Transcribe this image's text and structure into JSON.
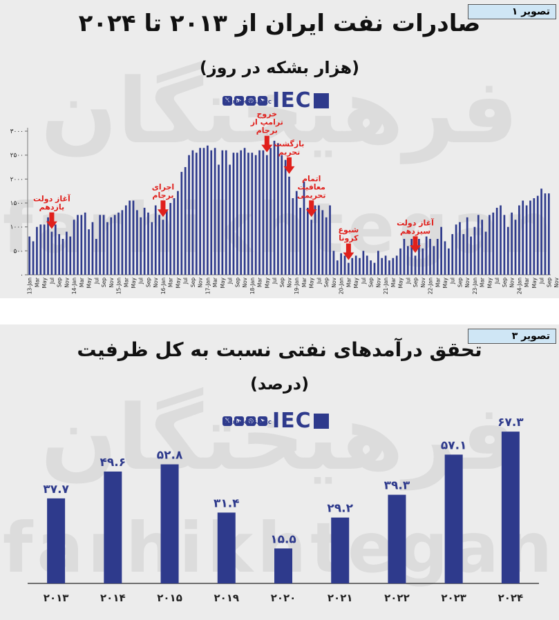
{
  "chart_data": [
    {
      "type": "bar",
      "tag": "تصویر ۱",
      "title": "صادرات نفت ایران از ۲۰۱۳ تا ۲۰۲۴",
      "subtitle": "(هزار بشکه در روز)",
      "ylim": [
        0,
        3000
      ],
      "yticks": [
        "۰",
        "۵۰۰",
        "۱۰۰۰",
        "۱۵۰۰",
        "۲۰۰۰",
        "۲۵۰۰",
        "۳۰۰۰"
      ],
      "x_tick_labels": [
        "13-Jan",
        "Mar",
        "May",
        "Jul",
        "Sep",
        "Nov",
        "14-Jan",
        "Mar",
        "May",
        "Jul",
        "Sep",
        "Nov",
        "15-Jan",
        "Mar",
        "May",
        "Jul",
        "Sep",
        "Nov",
        "16-Jan",
        "Mar",
        "May",
        "Jul",
        "Sep",
        "Nov",
        "17-Jan",
        "Mar",
        "May",
        "Jul",
        "Sep",
        "Nov",
        "18-Jan",
        "Mar",
        "May",
        "Jul",
        "Sep",
        "Nov",
        "19-Jan",
        "Mar",
        "May",
        "Jul",
        "Sep",
        "Nov",
        "20-Jan",
        "Mar",
        "May",
        "Jul",
        "Sep",
        "Nov",
        "21-Jan",
        "Mar",
        "May",
        "Jul",
        "Sep",
        "Nov",
        "22-Jan",
        "Mar",
        "May",
        "Jul",
        "Sep",
        "Nov",
        "23-Jan",
        "Mar",
        "May",
        "Jul",
        "Sep",
        "Nov",
        "24-Jan",
        "Mar",
        "May",
        "Jul",
        "Sep",
        "Nov"
      ],
      "values": [
        800,
        700,
        1000,
        1050,
        1050,
        1200,
        900,
        1050,
        850,
        750,
        900,
        800,
        1150,
        1250,
        1250,
        1300,
        950,
        1100,
        750,
        1250,
        1250,
        1100,
        1200,
        1250,
        1300,
        1350,
        1450,
        1550,
        1550,
        1350,
        1200,
        1400,
        1300,
        1100,
        1450,
        1250,
        1150,
        1350,
        1500,
        1600,
        1750,
        2150,
        2250,
        2500,
        2600,
        2550,
        2650,
        2650,
        2700,
        2600,
        2650,
        2300,
        2600,
        2600,
        2300,
        2550,
        2550,
        2600,
        2650,
        2550,
        2550,
        2500,
        2600,
        2600,
        2500,
        2650,
        2800,
        2750,
        2500,
        2400,
        2050,
        1600,
        1750,
        1400,
        1950,
        1400,
        1150,
        1450,
        1450,
        1350,
        1200,
        1450,
        500,
        300,
        450,
        400,
        250,
        350,
        400,
        350,
        500,
        400,
        300,
        250,
        500,
        350,
        400,
        300,
        350,
        400,
        550,
        750,
        600,
        750,
        400,
        750,
        550,
        800,
        750,
        600,
        750,
        1000,
        700,
        550,
        850,
        1050,
        1100,
        850,
        1200,
        800,
        1000,
        1250,
        1150,
        900,
        1250,
        1300,
        1400,
        1450,
        1250,
        1000,
        1300,
        1150,
        1450,
        1550,
        1450,
        1550,
        1600,
        1650,
        1800,
        1700,
        1700
      ]
    },
    {
      "type": "bar",
      "tag": "تصویر ۳",
      "title": "تحقق درآمدهای نفتی نسبت به کل ظرفیت",
      "subtitle": "(درصد)",
      "ylim": [
        0,
        75
      ],
      "categories": [
        "۲۰۱۳",
        "۲۰۱۴",
        "۲۰۱۵",
        "۲۰۱۹",
        "۲۰۲۰",
        "۲۰۲۱",
        "۲۰۲۲",
        "۲۰۲۳",
        "۲۰۲۴"
      ],
      "values": [
        37.7,
        49.6,
        52.8,
        31.4,
        15.5,
        29.2,
        39.3,
        57.1,
        67.3
      ],
      "value_labels": [
        "۳۷.۷",
        "۴۹.۶",
        "۵۲.۸",
        "۳۱.۴",
        "۱۵.۵",
        "۲۹.۲",
        "۳۹.۳",
        "۵۷.۱",
        "۶۷.۳"
      ]
    }
  ],
  "annotations": [
    {
      "lines": [
        "آغاز دولت",
        "یازدهم"
      ],
      "month_index": 6
    },
    {
      "lines": [
        "اجرای",
        "برجام"
      ],
      "month_index": 36
    },
    {
      "lines": [
        "خروج",
        "ترامپ از",
        "برجام"
      ],
      "month_index": 64
    },
    {
      "lines": [
        "بازگشت",
        "تحریم"
      ],
      "month_index": 70
    },
    {
      "lines": [
        "اتمام",
        "معافیت",
        "تحریمی"
      ],
      "month_index": 76
    },
    {
      "lines": [
        "شیوع",
        "کرونا"
      ],
      "month_index": 86
    },
    {
      "lines": [
        "آغاز دولت",
        "سیزدهم"
      ],
      "month_index": 104
    }
  ],
  "brand": {
    "site": "FARHIKHTEGANEC",
    "mark": "IEC",
    "watermark_fa": "فرهیختگان",
    "watermark_en": "farhikhtegan",
    "colors": {
      "bar": "#2e3a8c",
      "arrow": "#e0201c",
      "annotation": "#e0201c",
      "panel": "#ececec",
      "tag": "#cfe6f5"
    }
  }
}
